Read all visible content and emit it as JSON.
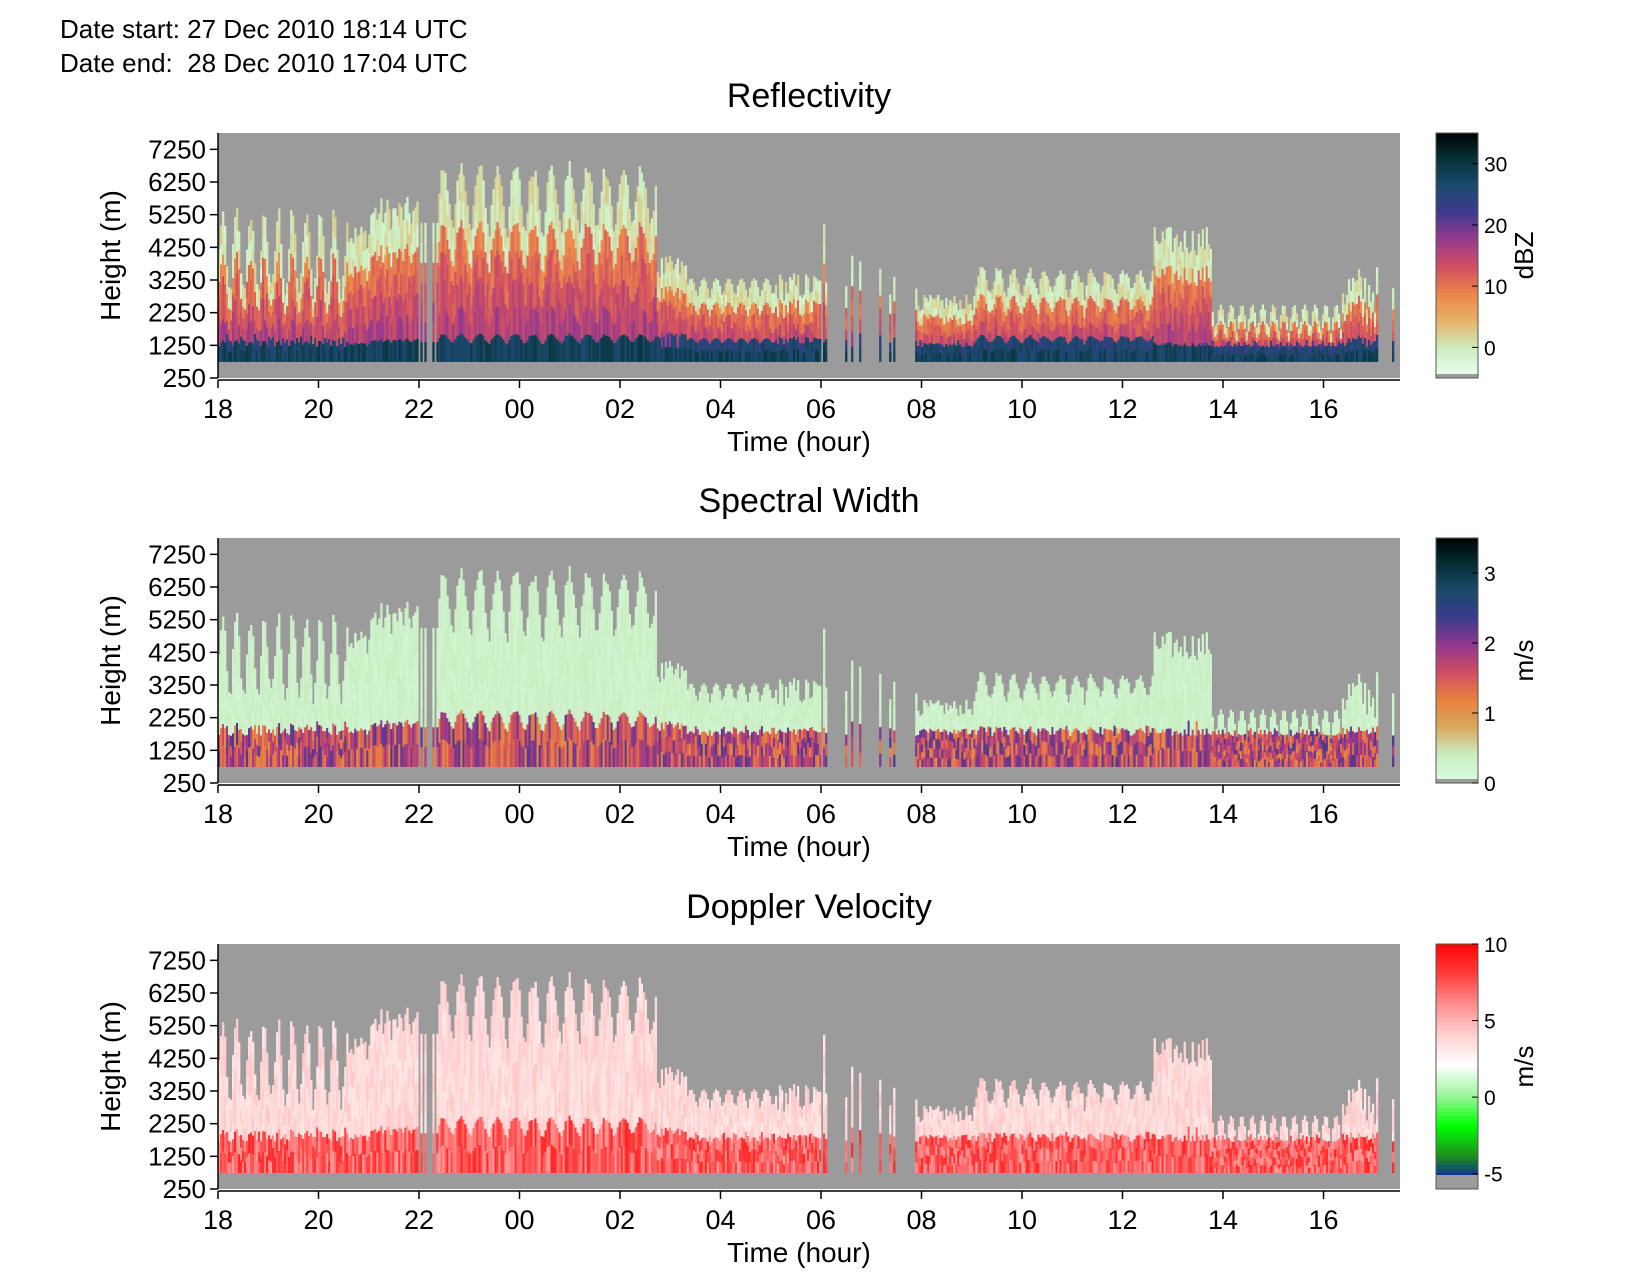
{
  "header": {
    "date_start_label": "Date start:",
    "date_start_value": "27 Dec 2010 18:14 UTC",
    "date_end_label": "Date end:",
    "date_end_value": "28 Dec 2010 17:04 UTC"
  },
  "colors": {
    "no_data": "#9b9b9b",
    "refl_scale": [
      "#e8fff2",
      "#cdeec0",
      "#e5b56a",
      "#ec8649",
      "#d25160",
      "#9a3a8d",
      "#3f3a8e",
      "#1c4a6e",
      "#063136",
      "#000000"
    ],
    "sw_scale": [
      "#d8fbe0",
      "#c9edc0",
      "#d9a75c",
      "#e8813f",
      "#cf4d62",
      "#92388e",
      "#3b3b8c",
      "#1a4a6a",
      "#052d33",
      "#000000"
    ],
    "dv_scale": [
      "#0000e0",
      "#1e8c1e",
      "#00ff00",
      "#9ef59e",
      "#ffffff",
      "#ffcfcf",
      "#ff8c8c",
      "#ff3a3a",
      "#ff0000"
    ]
  },
  "chart_data": [
    {
      "type": "heatmap",
      "title": "Reflectivity",
      "xlabel": "Time (hour)",
      "ylabel": "Height (m)",
      "x_ticks": [
        "18",
        "20",
        "22",
        "00",
        "02",
        "04",
        "06",
        "08",
        "10",
        "12",
        "14",
        "16"
      ],
      "y_ticks": [
        250,
        1250,
        2250,
        3250,
        4250,
        5250,
        6250,
        7250
      ],
      "ylim": [
        250,
        7750
      ],
      "colorbar": {
        "label": "dBZ",
        "ticks": [
          0,
          10,
          20,
          30
        ],
        "range": [
          -5,
          35
        ]
      }
    },
    {
      "type": "heatmap",
      "title": "Spectral Width",
      "xlabel": "Time (hour)",
      "ylabel": "Height (m)",
      "x_ticks": [
        "18",
        "20",
        "22",
        "00",
        "02",
        "04",
        "06",
        "08",
        "10",
        "12",
        "14",
        "16"
      ],
      "y_ticks": [
        250,
        1250,
        2250,
        3250,
        4250,
        5250,
        6250,
        7250
      ],
      "ylim": [
        250,
        7750
      ],
      "colorbar": {
        "label": "m/s",
        "ticks": [
          0,
          1,
          2,
          3
        ],
        "range": [
          0,
          3.5
        ]
      }
    },
    {
      "type": "heatmap",
      "title": "Doppler Velocity",
      "xlabel": "Time (hour)",
      "ylabel": "Height (m)",
      "x_ticks": [
        "18",
        "20",
        "22",
        "00",
        "02",
        "04",
        "06",
        "08",
        "10",
        "12",
        "14",
        "16"
      ],
      "y_ticks": [
        250,
        1250,
        2250,
        3250,
        4250,
        5250,
        6250,
        7250
      ],
      "ylim": [
        250,
        7750
      ],
      "colorbar": {
        "label": "m/s",
        "ticks": [
          -5,
          0,
          5,
          10
        ],
        "range": [
          -6,
          10
        ]
      }
    }
  ]
}
